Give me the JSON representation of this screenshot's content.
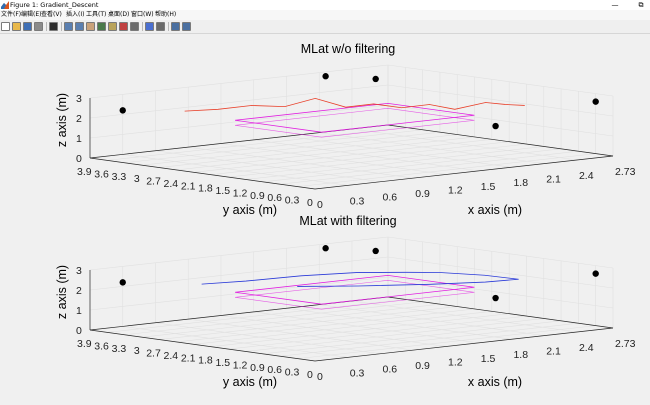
{
  "window": {
    "title": "Figure 1: Gradient_Descent",
    "minimize": "—",
    "restore": "⧉"
  },
  "menu": [
    "文件(F)",
    "编辑(E)",
    "查看(V)",
    "插入(I)",
    "工具(T)",
    "桌面(D)",
    "窗口(W)",
    "帮助(H)"
  ],
  "toolbar": [
    {
      "name": "new-figure-icon",
      "color": "#ffffff"
    },
    {
      "name": "open-file-icon",
      "color": "#e8b84a"
    },
    {
      "name": "save-icon",
      "color": "#3f6fb5"
    },
    {
      "name": "print-icon",
      "color": "#8a8a8a"
    },
    {
      "sep": true
    },
    {
      "name": "edit-plot-arrow-icon",
      "color": "#2b2b2b"
    },
    {
      "sep": true
    },
    {
      "name": "zoom-in-icon",
      "color": "#5a7fb0"
    },
    {
      "name": "zoom-out-icon",
      "color": "#5a7fb0"
    },
    {
      "name": "pan-hand-icon",
      "color": "#c9a27a"
    },
    {
      "name": "rotate-3d-icon",
      "color": "#4a7a4a"
    },
    {
      "name": "data-cursor-icon",
      "color": "#b9a35a"
    },
    {
      "name": "brush-icon",
      "color": "#c04040"
    },
    {
      "name": "link-icon",
      "color": "#6a6a6a"
    },
    {
      "sep": true
    },
    {
      "name": "insert-colorbar-icon",
      "color": "#4a6fd0"
    },
    {
      "name": "insert-legend-icon",
      "color": "#6a6a6a"
    },
    {
      "sep": true
    },
    {
      "name": "hide-plot-tools-icon",
      "color": "#4a6fa0"
    },
    {
      "name": "show-plot-tools-icon",
      "color": "#4a6fa0"
    }
  ],
  "colors": {
    "anchors": "#000000",
    "raw_path": "#e8402a",
    "filtered_path": "#2a3ad8",
    "ground_truth": "#e020e0",
    "grid": "#e0e0e0"
  },
  "chart_data": [
    {
      "type": "scatter3d",
      "title": "MLat w/o filtering",
      "xlabel": "x axis (m)",
      "ylabel": "y axis (m)",
      "zlabel": "z axis (m)",
      "xticks": [
        "0",
        "0.3",
        "0.6",
        "0.9",
        "1.2",
        "1.5",
        "1.8",
        "2.1",
        "2.4",
        "2.73"
      ],
      "yticks": [
        "3.9",
        "3.6",
        "3.3",
        "3",
        "2.7",
        "2.4",
        "2.1",
        "1.8",
        "1.5",
        "1.2",
        "0.9",
        "0.6",
        "0.3",
        "0"
      ],
      "zticks": [
        "0",
        "1",
        "2",
        "3"
      ],
      "xlim": [
        0,
        2.73
      ],
      "ylim": [
        0,
        3.9
      ],
      "zlim": [
        0,
        3
      ],
      "grid": true,
      "anchors": [
        [
          0.3,
          3.9,
          2.2
        ],
        [
          2.0,
          3.6,
          3.0
        ],
        [
          2.3,
          3.3,
          2.8
        ],
        [
          2.73,
          0.3,
          2.6
        ],
        [
          2.5,
          1.6,
          1.0
        ]
      ],
      "ground_truth": [
        [
          0.8,
          2.9,
          1.8
        ],
        [
          2.2,
          2.9,
          1.8
        ],
        [
          2.2,
          1.4,
          1.8
        ],
        [
          0.8,
          1.4,
          1.8
        ],
        [
          0.8,
          2.9,
          1.8
        ]
      ],
      "series": [
        {
          "values": [
            [
              0.55,
              3.3,
              2.25
            ],
            [
              0.75,
              3.1,
              2.3
            ],
            [
              0.95,
              2.9,
              2.45
            ],
            [
              1.15,
              2.7,
              2.35
            ],
            [
              1.35,
              2.55,
              2.7
            ],
            [
              1.55,
              2.4,
              2.2
            ],
            [
              1.7,
              2.2,
              2.35
            ],
            [
              1.85,
              2.0,
              2.15
            ],
            [
              2.0,
              1.8,
              2.3
            ],
            [
              2.1,
              1.55,
              2.1
            ],
            [
              2.25,
              1.3,
              2.45
            ],
            [
              2.35,
              1.15,
              2.35
            ],
            [
              2.45,
              1.0,
              2.3
            ]
          ]
        }
      ]
    },
    {
      "type": "scatter3d",
      "title": "MLat with filtering",
      "xlabel": "x axis (m)",
      "ylabel": "y axis (m)",
      "zlabel": "z axis (m)",
      "xticks": [
        "0",
        "0.3",
        "0.6",
        "0.9",
        "1.2",
        "1.5",
        "1.8",
        "2.1",
        "2.4",
        "2.73"
      ],
      "yticks": [
        "3.9",
        "3.6",
        "3.3",
        "3",
        "2.7",
        "2.4",
        "2.1",
        "1.8",
        "1.5",
        "1.2",
        "0.9",
        "0.6",
        "0.3",
        "0"
      ],
      "zticks": [
        "0",
        "1",
        "2",
        "3"
      ],
      "xlim": [
        0,
        2.73
      ],
      "ylim": [
        0,
        3.9
      ],
      "zlim": [
        0,
        3
      ],
      "grid": true,
      "anchors": [
        [
          0.3,
          3.9,
          2.2
        ],
        [
          2.0,
          3.6,
          3.0
        ],
        [
          2.3,
          3.3,
          2.8
        ],
        [
          2.73,
          0.3,
          2.6
        ],
        [
          2.5,
          1.6,
          1.0
        ]
      ],
      "ground_truth": [
        [
          0.8,
          2.9,
          1.8
        ],
        [
          2.2,
          2.9,
          1.8
        ],
        [
          2.2,
          1.4,
          1.8
        ],
        [
          0.8,
          1.4,
          1.8
        ],
        [
          0.8,
          2.9,
          1.8
        ]
      ],
      "series": [
        {
          "values": [
            [
              0.6,
              3.1,
              2.25
            ],
            [
              0.9,
              2.9,
              2.3
            ],
            [
              1.3,
              2.7,
              2.4
            ],
            [
              1.7,
              2.5,
              2.4
            ],
            [
              2.0,
              2.2,
              2.35
            ],
            [
              2.2,
              2.0,
              2.3
            ],
            [
              2.4,
              1.6,
              2.2
            ],
            [
              2.5,
              1.2,
              2.1
            ],
            [
              2.3,
              1.4,
              2.0
            ],
            [
              1.9,
              1.6,
              2.05
            ],
            [
              1.4,
              1.9,
              2.15
            ],
            [
              1.0,
              2.2,
              2.25
            ]
          ]
        }
      ]
    }
  ]
}
